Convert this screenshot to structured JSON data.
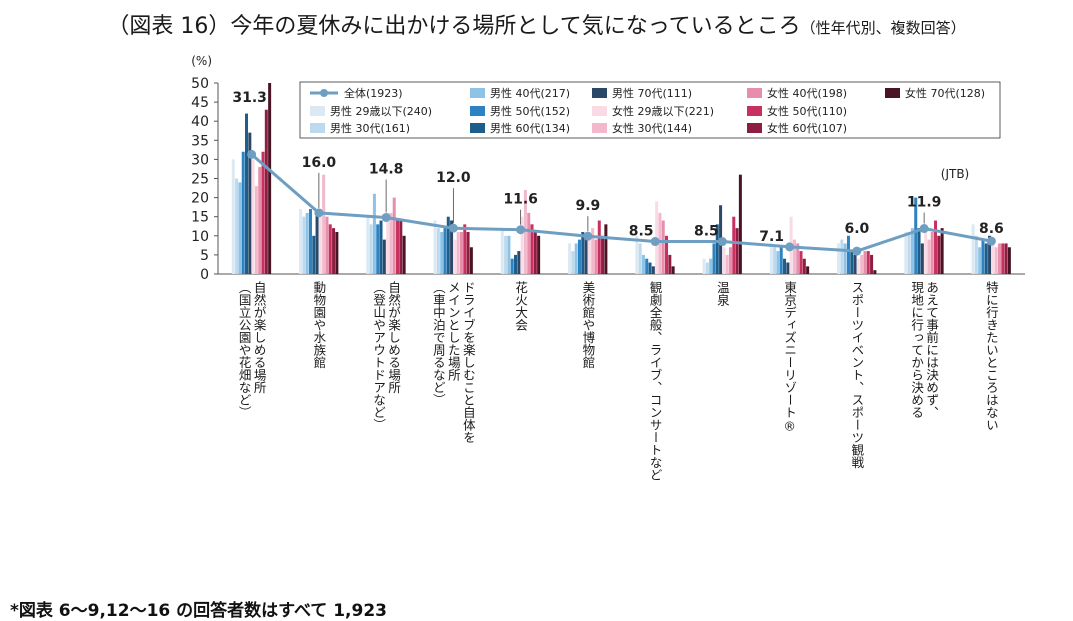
{
  "title": "（図表 16）今年の夏休みに出かける場所として気になっているところ",
  "title_sub": "（性年代別、複数回答）",
  "footnote": "*図表 6～9,12～16 の回答者数はすべて 1,923",
  "chart_data": {
    "type": "bar",
    "unit_label": "(%)",
    "source_label": "(JTB)",
    "ylim": [
      0,
      50
    ],
    "yticks": [
      0,
      5,
      10,
      15,
      20,
      25,
      30,
      35,
      40,
      45,
      50
    ],
    "categories": [
      "自然が楽しめる場所\n（国立公園や花畑など）",
      "動物園や水族館",
      "自然が楽しめる場所\n（登山やアウトドアなど）",
      "ドライブを楽しむこと自体を\nメインとした場所\n（車中泊で周るなど）",
      "花火大会",
      "美術館や博物館",
      "観劇全般、ライブ、コンサートなど",
      "温泉",
      "東京ディズニーリゾート®",
      "スポーツイベント、スポーツ観戦",
      "あえて事前には決めず、\n現地に行ってから決める",
      "特に行きたいところはない"
    ],
    "line_series": {
      "name": "全体(1923)",
      "color": "#6e9ec2",
      "values": [
        31.3,
        16.0,
        14.8,
        12.0,
        11.6,
        9.9,
        8.5,
        8.5,
        7.1,
        6.0,
        11.9,
        8.6
      ],
      "labels": [
        "31.3",
        "16.0",
        "14.8",
        "12.0",
        "11.6",
        "9.9",
        "8.5",
        "8.5",
        "7.1",
        "6.0",
        "11.9",
        "8.6"
      ]
    },
    "series": [
      {
        "name": "男性 29歳以下(240)",
        "color": "#dbe9f4",
        "values": [
          30,
          17,
          15,
          14,
          12,
          8,
          10,
          4,
          8,
          8,
          11,
          13
        ]
      },
      {
        "name": "男性 30代(161)",
        "color": "#bcd9ee",
        "values": [
          25,
          15,
          13,
          12,
          10,
          6,
          8,
          3,
          7,
          9,
          11,
          10
        ]
      },
      {
        "name": "男性 40代(217)",
        "color": "#8ec3e6",
        "values": [
          24,
          16,
          21,
          11,
          10,
          8,
          5,
          4,
          6,
          8,
          12,
          7
        ]
      },
      {
        "name": "男性 50代(152)",
        "color": "#2d82c1",
        "values": [
          32,
          17,
          13,
          12,
          4,
          9,
          4,
          8,
          7,
          10,
          20,
          9
        ]
      },
      {
        "name": "男性 60代(134)",
        "color": "#1c5d8c",
        "values": [
          42,
          10,
          14,
          15,
          5,
          11,
          3,
          13,
          4,
          6,
          12,
          8
        ]
      },
      {
        "name": "男性 70代(111)",
        "color": "#2b4868",
        "values": [
          37,
          16,
          9,
          14,
          6,
          10,
          2,
          18,
          3,
          5,
          8,
          10
        ]
      },
      {
        "name": "女性 29歳以下(221)",
        "color": "#f9dbe5",
        "values": [
          30,
          15,
          16,
          9,
          15,
          9,
          19,
          7,
          15,
          4,
          13,
          8
        ]
      },
      {
        "name": "女性 30代(144)",
        "color": "#f2b8cb",
        "values": [
          23,
          26,
          16,
          11,
          22,
          12,
          16,
          5,
          9,
          5,
          9,
          7
        ]
      },
      {
        "name": "女性 40代(198)",
        "color": "#e68eab",
        "values": [
          28,
          15,
          20,
          11,
          16,
          9,
          14,
          7,
          8,
          6,
          11,
          8
        ]
      },
      {
        "name": "女性 50代(110)",
        "color": "#c7305f",
        "values": [
          32,
          13,
          14,
          13,
          13,
          14,
          10,
          15,
          6,
          6,
          14,
          8
        ]
      },
      {
        "name": "女性 60代(107)",
        "color": "#8e1d42",
        "values": [
          43,
          12,
          14,
          11,
          11,
          10,
          5,
          12,
          4,
          5,
          10,
          8
        ]
      },
      {
        "name": "女性 70代(128)",
        "color": "#4a1424",
        "values": [
          50,
          11,
          10,
          7,
          10,
          13,
          2,
          26,
          2,
          1,
          12,
          7
        ]
      }
    ]
  }
}
